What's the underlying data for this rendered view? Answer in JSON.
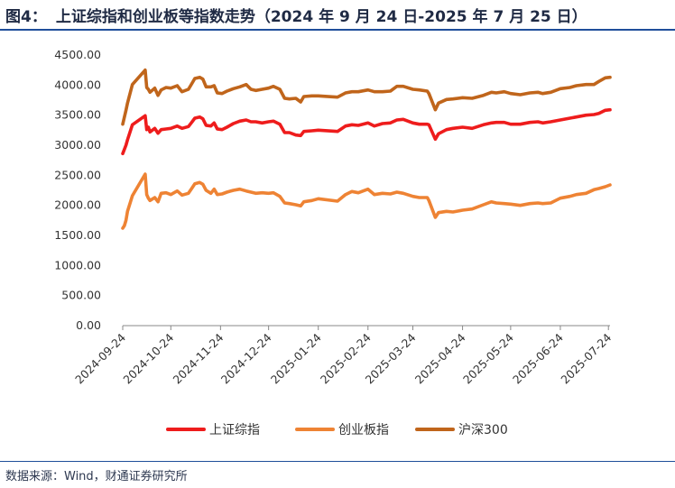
{
  "header": {
    "figure_no": "图4：",
    "title": "上证综指和创业板等指数走势（2024 年 9 月 24 日-2025 年 7 月 25 日）"
  },
  "footer": {
    "source": "数据来源：Wind，财通证券研究所"
  },
  "colors": {
    "shanghai": "#ee1c1c",
    "chinext": "#ee8334",
    "csi300": "#c0651b",
    "rule": "#1f4e9a"
  },
  "chart_data": {
    "type": "line",
    "title": "",
    "xlabel": "",
    "ylabel": "",
    "ylim": [
      0,
      4500
    ],
    "y_ticks": [
      "0.00",
      "500.00",
      "1000.00",
      "1500.00",
      "2000.00",
      "2500.00",
      "3000.00",
      "3500.00",
      "4000.00",
      "4500.00"
    ],
    "x_ticks": [
      "2024-09-24",
      "2024-10-24",
      "2024-11-24",
      "2024-12-24",
      "2025-01-24",
      "2025-02-24",
      "2025-03-24",
      "2025-04-24",
      "2025-05-24",
      "2025-06-24",
      "2025-07-24"
    ],
    "grid": false,
    "legend_position": "bottom",
    "series": [
      {
        "name": "上证综指",
        "color": "#ee1c1c",
        "points": [
          [
            "2024-09-24",
            2860
          ],
          [
            "2024-09-26",
            3000
          ],
          [
            "2024-09-27",
            3090
          ],
          [
            "2024-09-30",
            3340
          ],
          [
            "2024-10-08",
            3490
          ],
          [
            "2024-10-09",
            3260
          ],
          [
            "2024-10-10",
            3300
          ],
          [
            "2024-10-11",
            3220
          ],
          [
            "2024-10-14",
            3280
          ],
          [
            "2024-10-16",
            3200
          ],
          [
            "2024-10-18",
            3260
          ],
          [
            "2024-10-21",
            3270
          ],
          [
            "2024-10-24",
            3280
          ],
          [
            "2024-10-28",
            3320
          ],
          [
            "2024-10-31",
            3280
          ],
          [
            "2024-11-04",
            3310
          ],
          [
            "2024-11-06",
            3380
          ],
          [
            "2024-11-08",
            3450
          ],
          [
            "2024-11-11",
            3470
          ],
          [
            "2024-11-13",
            3440
          ],
          [
            "2024-11-15",
            3330
          ],
          [
            "2024-11-18",
            3320
          ],
          [
            "2024-11-20",
            3370
          ],
          [
            "2024-11-22",
            3270
          ],
          [
            "2024-11-25",
            3260
          ],
          [
            "2024-11-28",
            3300
          ],
          [
            "2024-12-02",
            3360
          ],
          [
            "2024-12-06",
            3400
          ],
          [
            "2024-12-10",
            3420
          ],
          [
            "2024-12-13",
            3390
          ],
          [
            "2024-12-16",
            3390
          ],
          [
            "2024-12-20",
            3370
          ],
          [
            "2024-12-24",
            3390
          ],
          [
            "2024-12-27",
            3400
          ],
          [
            "2024-12-31",
            3350
          ],
          [
            "2025-01-03",
            3210
          ],
          [
            "2025-01-06",
            3210
          ],
          [
            "2025-01-10",
            3170
          ],
          [
            "2025-01-13",
            3160
          ],
          [
            "2025-01-15",
            3230
          ],
          [
            "2025-01-20",
            3240
          ],
          [
            "2025-01-24",
            3250
          ],
          [
            "2025-02-05",
            3230
          ],
          [
            "2025-02-10",
            3320
          ],
          [
            "2025-02-14",
            3340
          ],
          [
            "2025-02-18",
            3330
          ],
          [
            "2025-02-24",
            3370
          ],
          [
            "2025-02-28",
            3320
          ],
          [
            "2025-03-05",
            3360
          ],
          [
            "2025-03-10",
            3370
          ],
          [
            "2025-03-14",
            3420
          ],
          [
            "2025-03-18",
            3430
          ],
          [
            "2025-03-24",
            3370
          ],
          [
            "2025-03-28",
            3350
          ],
          [
            "2025-04-02",
            3350
          ],
          [
            "2025-04-03",
            3340
          ],
          [
            "2025-04-07",
            3100
          ],
          [
            "2025-04-09",
            3190
          ],
          [
            "2025-04-14",
            3260
          ],
          [
            "2025-04-18",
            3280
          ],
          [
            "2025-04-24",
            3300
          ],
          [
            "2025-04-30",
            3280
          ],
          [
            "2025-05-07",
            3340
          ],
          [
            "2025-05-12",
            3370
          ],
          [
            "2025-05-15",
            3380
          ],
          [
            "2025-05-20",
            3380
          ],
          [
            "2025-05-24",
            3350
          ],
          [
            "2025-05-30",
            3350
          ],
          [
            "2025-06-05",
            3380
          ],
          [
            "2025-06-10",
            3390
          ],
          [
            "2025-06-13",
            3370
          ],
          [
            "2025-06-18",
            3390
          ],
          [
            "2025-06-24",
            3420
          ],
          [
            "2025-06-30",
            3450
          ],
          [
            "2025-07-04",
            3470
          ],
          [
            "2025-07-10",
            3500
          ],
          [
            "2025-07-15",
            3510
          ],
          [
            "2025-07-18",
            3530
          ],
          [
            "2025-07-22",
            3580
          ],
          [
            "2025-07-25",
            3590
          ]
        ]
      },
      {
        "name": "创业板指",
        "color": "#ee8334",
        "points": [
          [
            "2024-09-24",
            1620
          ],
          [
            "2024-09-25",
            1660
          ],
          [
            "2024-09-26",
            1750
          ],
          [
            "2024-09-27",
            1900
          ],
          [
            "2024-09-30",
            2160
          ],
          [
            "2024-10-08",
            2520
          ],
          [
            "2024-10-09",
            2180
          ],
          [
            "2024-10-10",
            2120
          ],
          [
            "2024-10-11",
            2080
          ],
          [
            "2024-10-14",
            2130
          ],
          [
            "2024-10-16",
            2060
          ],
          [
            "2024-10-18",
            2200
          ],
          [
            "2024-10-21",
            2210
          ],
          [
            "2024-10-24",
            2180
          ],
          [
            "2024-10-28",
            2240
          ],
          [
            "2024-10-31",
            2170
          ],
          [
            "2024-11-04",
            2200
          ],
          [
            "2024-11-06",
            2280
          ],
          [
            "2024-11-08",
            2360
          ],
          [
            "2024-11-11",
            2380
          ],
          [
            "2024-11-13",
            2350
          ],
          [
            "2024-11-15",
            2250
          ],
          [
            "2024-11-18",
            2200
          ],
          [
            "2024-11-20",
            2270
          ],
          [
            "2024-11-22",
            2180
          ],
          [
            "2024-11-25",
            2190
          ],
          [
            "2024-11-28",
            2220
          ],
          [
            "2024-12-02",
            2250
          ],
          [
            "2024-12-06",
            2270
          ],
          [
            "2024-12-10",
            2240
          ],
          [
            "2024-12-13",
            2220
          ],
          [
            "2024-12-16",
            2200
          ],
          [
            "2024-12-20",
            2210
          ],
          [
            "2024-12-24",
            2200
          ],
          [
            "2024-12-27",
            2210
          ],
          [
            "2024-12-31",
            2150
          ],
          [
            "2025-01-03",
            2040
          ],
          [
            "2025-01-06",
            2030
          ],
          [
            "2025-01-10",
            2010
          ],
          [
            "2025-01-13",
            1990
          ],
          [
            "2025-01-15",
            2060
          ],
          [
            "2025-01-20",
            2080
          ],
          [
            "2025-01-24",
            2110
          ],
          [
            "2025-02-05",
            2070
          ],
          [
            "2025-02-10",
            2180
          ],
          [
            "2025-02-14",
            2230
          ],
          [
            "2025-02-18",
            2210
          ],
          [
            "2025-02-24",
            2270
          ],
          [
            "2025-02-28",
            2180
          ],
          [
            "2025-03-05",
            2200
          ],
          [
            "2025-03-10",
            2190
          ],
          [
            "2025-03-14",
            2220
          ],
          [
            "2025-03-18",
            2200
          ],
          [
            "2025-03-24",
            2150
          ],
          [
            "2025-03-28",
            2130
          ],
          [
            "2025-04-02",
            2130
          ],
          [
            "2025-04-03",
            2080
          ],
          [
            "2025-04-07",
            1800
          ],
          [
            "2025-04-09",
            1880
          ],
          [
            "2025-04-14",
            1900
          ],
          [
            "2025-04-18",
            1890
          ],
          [
            "2025-04-24",
            1920
          ],
          [
            "2025-04-30",
            1940
          ],
          [
            "2025-05-07",
            2010
          ],
          [
            "2025-05-12",
            2060
          ],
          [
            "2025-05-15",
            2040
          ],
          [
            "2025-05-20",
            2030
          ],
          [
            "2025-05-24",
            2020
          ],
          [
            "2025-05-30",
            2000
          ],
          [
            "2025-06-05",
            2030
          ],
          [
            "2025-06-10",
            2040
          ],
          [
            "2025-06-13",
            2030
          ],
          [
            "2025-06-18",
            2040
          ],
          [
            "2025-06-24",
            2120
          ],
          [
            "2025-06-30",
            2150
          ],
          [
            "2025-07-04",
            2180
          ],
          [
            "2025-07-10",
            2200
          ],
          [
            "2025-07-15",
            2260
          ],
          [
            "2025-07-18",
            2280
          ],
          [
            "2025-07-22",
            2310
          ],
          [
            "2025-07-25",
            2340
          ]
        ]
      },
      {
        "name": "沪深300",
        "color": "#c0651b",
        "points": [
          [
            "2024-09-24",
            3350
          ],
          [
            "2024-09-26",
            3580
          ],
          [
            "2024-09-27",
            3700
          ],
          [
            "2024-09-30",
            4010
          ],
          [
            "2024-10-08",
            4250
          ],
          [
            "2024-10-09",
            3960
          ],
          [
            "2024-10-10",
            3930
          ],
          [
            "2024-10-11",
            3880
          ],
          [
            "2024-10-14",
            3950
          ],
          [
            "2024-10-16",
            3830
          ],
          [
            "2024-10-18",
            3920
          ],
          [
            "2024-10-21",
            3960
          ],
          [
            "2024-10-24",
            3950
          ],
          [
            "2024-10-28",
            3990
          ],
          [
            "2024-10-31",
            3890
          ],
          [
            "2024-11-04",
            3930
          ],
          [
            "2024-11-06",
            4020
          ],
          [
            "2024-11-08",
            4110
          ],
          [
            "2024-11-11",
            4130
          ],
          [
            "2024-11-13",
            4100
          ],
          [
            "2024-11-15",
            3970
          ],
          [
            "2024-11-18",
            3970
          ],
          [
            "2024-11-20",
            3990
          ],
          [
            "2024-11-22",
            3870
          ],
          [
            "2024-11-25",
            3860
          ],
          [
            "2024-11-28",
            3900
          ],
          [
            "2024-12-02",
            3940
          ],
          [
            "2024-12-06",
            3970
          ],
          [
            "2024-12-10",
            4010
          ],
          [
            "2024-12-13",
            3930
          ],
          [
            "2024-12-16",
            3910
          ],
          [
            "2024-12-20",
            3930
          ],
          [
            "2024-12-24",
            3950
          ],
          [
            "2024-12-27",
            3980
          ],
          [
            "2024-12-31",
            3930
          ],
          [
            "2025-01-03",
            3780
          ],
          [
            "2025-01-06",
            3770
          ],
          [
            "2025-01-10",
            3780
          ],
          [
            "2025-01-13",
            3720
          ],
          [
            "2025-01-15",
            3810
          ],
          [
            "2025-01-20",
            3820
          ],
          [
            "2025-01-24",
            3820
          ],
          [
            "2025-02-05",
            3800
          ],
          [
            "2025-02-10",
            3870
          ],
          [
            "2025-02-14",
            3890
          ],
          [
            "2025-02-18",
            3890
          ],
          [
            "2025-02-24",
            3920
          ],
          [
            "2025-02-28",
            3890
          ],
          [
            "2025-03-05",
            3890
          ],
          [
            "2025-03-10",
            3900
          ],
          [
            "2025-03-14",
            3980
          ],
          [
            "2025-03-18",
            3980
          ],
          [
            "2025-03-24",
            3930
          ],
          [
            "2025-03-28",
            3920
          ],
          [
            "2025-04-02",
            3900
          ],
          [
            "2025-04-03",
            3860
          ],
          [
            "2025-04-07",
            3590
          ],
          [
            "2025-04-09",
            3700
          ],
          [
            "2025-04-14",
            3760
          ],
          [
            "2025-04-18",
            3770
          ],
          [
            "2025-04-24",
            3790
          ],
          [
            "2025-04-30",
            3780
          ],
          [
            "2025-05-07",
            3830
          ],
          [
            "2025-05-12",
            3880
          ],
          [
            "2025-05-15",
            3870
          ],
          [
            "2025-05-20",
            3890
          ],
          [
            "2025-05-24",
            3860
          ],
          [
            "2025-05-30",
            3840
          ],
          [
            "2025-06-05",
            3870
          ],
          [
            "2025-06-10",
            3880
          ],
          [
            "2025-06-13",
            3860
          ],
          [
            "2025-06-18",
            3880
          ],
          [
            "2025-06-24",
            3940
          ],
          [
            "2025-06-30",
            3960
          ],
          [
            "2025-07-04",
            3990
          ],
          [
            "2025-07-10",
            4010
          ],
          [
            "2025-07-15",
            4010
          ],
          [
            "2025-07-18",
            4060
          ],
          [
            "2025-07-22",
            4120
          ],
          [
            "2025-07-25",
            4130
          ]
        ]
      }
    ]
  }
}
